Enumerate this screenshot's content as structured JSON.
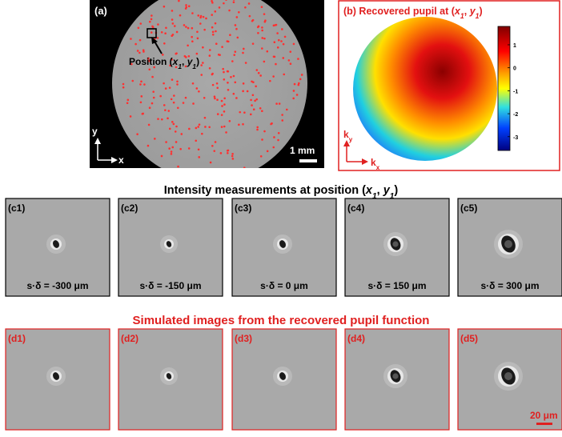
{
  "panel_a": {
    "label": "(a)",
    "position_parts": [
      "Position (",
      "x",
      "1",
      ", ",
      "y",
      "1",
      ")"
    ],
    "axis_y": "y",
    "axis_x": "x",
    "scale_bar": "1 mm"
  },
  "panel_b": {
    "title_parts": [
      "(b) Recovered pupil at (",
      "x",
      "1",
      ", ",
      "y",
      "1",
      ")"
    ],
    "colorbar": {
      "lim": [
        -3.6,
        1.8
      ],
      "ticks": [
        1,
        0,
        -1,
        -2,
        -3
      ]
    },
    "axis_y": [
      "k",
      "y"
    ],
    "axis_x": [
      "k",
      "x"
    ]
  },
  "row_c": {
    "heading_parts": [
      "Intensity measurements at position (",
      "x",
      "1",
      ", ",
      "y",
      "1",
      ")"
    ],
    "panels": [
      {
        "label": "(c1)",
        "caption": "s·δ = -300 μm"
      },
      {
        "label": "(c2)",
        "caption": "s·δ = -150 μm"
      },
      {
        "label": "(c3)",
        "caption": "s·δ = 0 μm"
      },
      {
        "label": "(c4)",
        "caption": "s·δ = 150 μm"
      },
      {
        "label": "(c5)",
        "caption": "s·δ = 300 μm"
      }
    ]
  },
  "row_d": {
    "heading": "Simulated images from the recovered pupil function",
    "panels": [
      {
        "label": "(d1)"
      },
      {
        "label": "(d2)"
      },
      {
        "label": "(d3)"
      },
      {
        "label": "(d4)"
      },
      {
        "label": "(d5)"
      }
    ],
    "scale_bar": "20 μm"
  }
}
